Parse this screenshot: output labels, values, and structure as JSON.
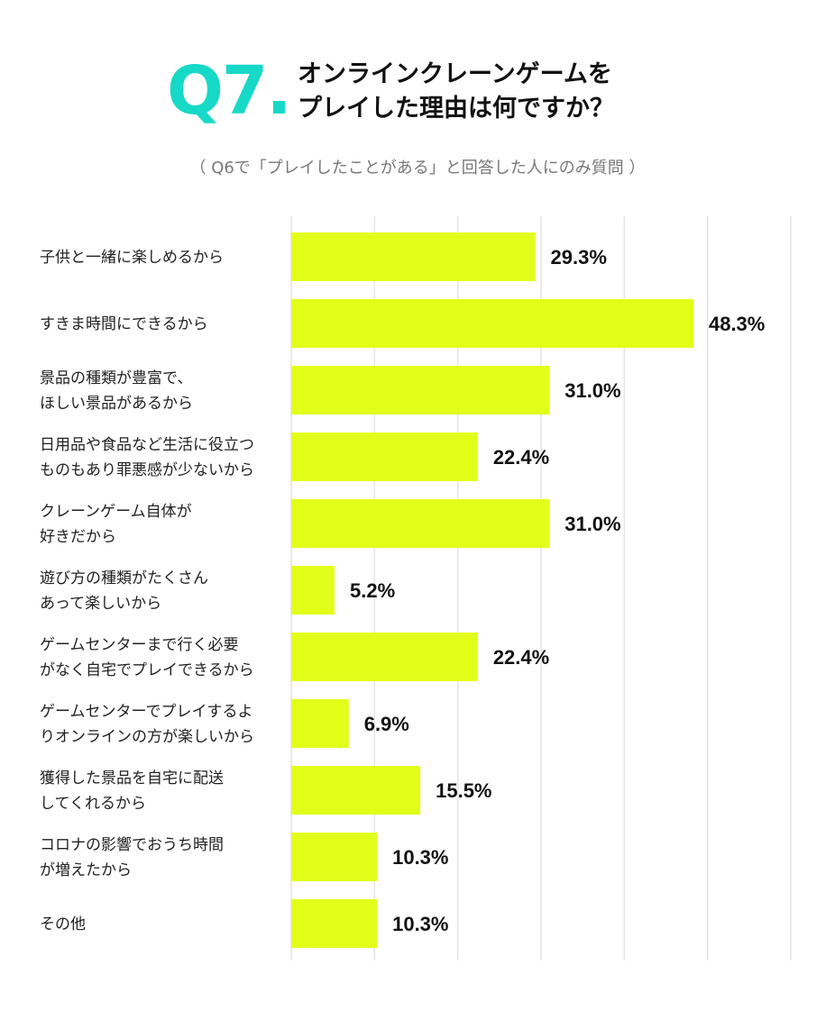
{
  "header": {
    "q_number": "Q7.",
    "title_line1": "オンラインクレーンゲームを",
    "title_line2": "プレイした理由は何ですか？",
    "subtitle": "（ Q6で「プレイしたことがある」と回答した人にのみ質問 ）"
  },
  "chart_data": {
    "type": "bar",
    "orientation": "horizontal",
    "title": "オンラインクレーンゲームをプレイした理由は何ですか？",
    "categories": [
      [
        "子供と一緒に楽しめるから"
      ],
      [
        "すきま時間にできるから"
      ],
      [
        "景品の種類が豊富で、",
        "ほしい景品があるから"
      ],
      [
        "日用品や食品など生活に役立つ",
        "ものもあり罪悪感が少ないから"
      ],
      [
        "クレーンゲーム自体が",
        "好きだから"
      ],
      [
        "遊び方の種類がたくさん",
        "あって楽しいから"
      ],
      [
        "ゲームセンターまで行く必要",
        "がなく自宅でプレイできるから"
      ],
      [
        "ゲームセンターでプレイするよ",
        "りオンラインの方が楽しいから"
      ],
      [
        "獲得した景品を自宅に配送",
        "してくれるから"
      ],
      [
        "コロナの影響でおうち時間",
        "が増えたから"
      ],
      [
        "その他"
      ]
    ],
    "values": [
      29.3,
      48.3,
      31.0,
      22.4,
      31.0,
      5.2,
      22.4,
      6.9,
      15.5,
      10.3,
      10.3
    ],
    "value_labels": [
      "29.3%",
      "48.3%",
      "31.0%",
      "22.4%",
      "31.0%",
      "5.2%",
      "22.4%",
      "6.9%",
      "15.5%",
      "10.3%",
      "10.3%"
    ],
    "xlim": [
      0,
      60
    ],
    "grid": true,
    "bar_color": "#e2ff1a",
    "grid_color": "#e4e4e4"
  }
}
